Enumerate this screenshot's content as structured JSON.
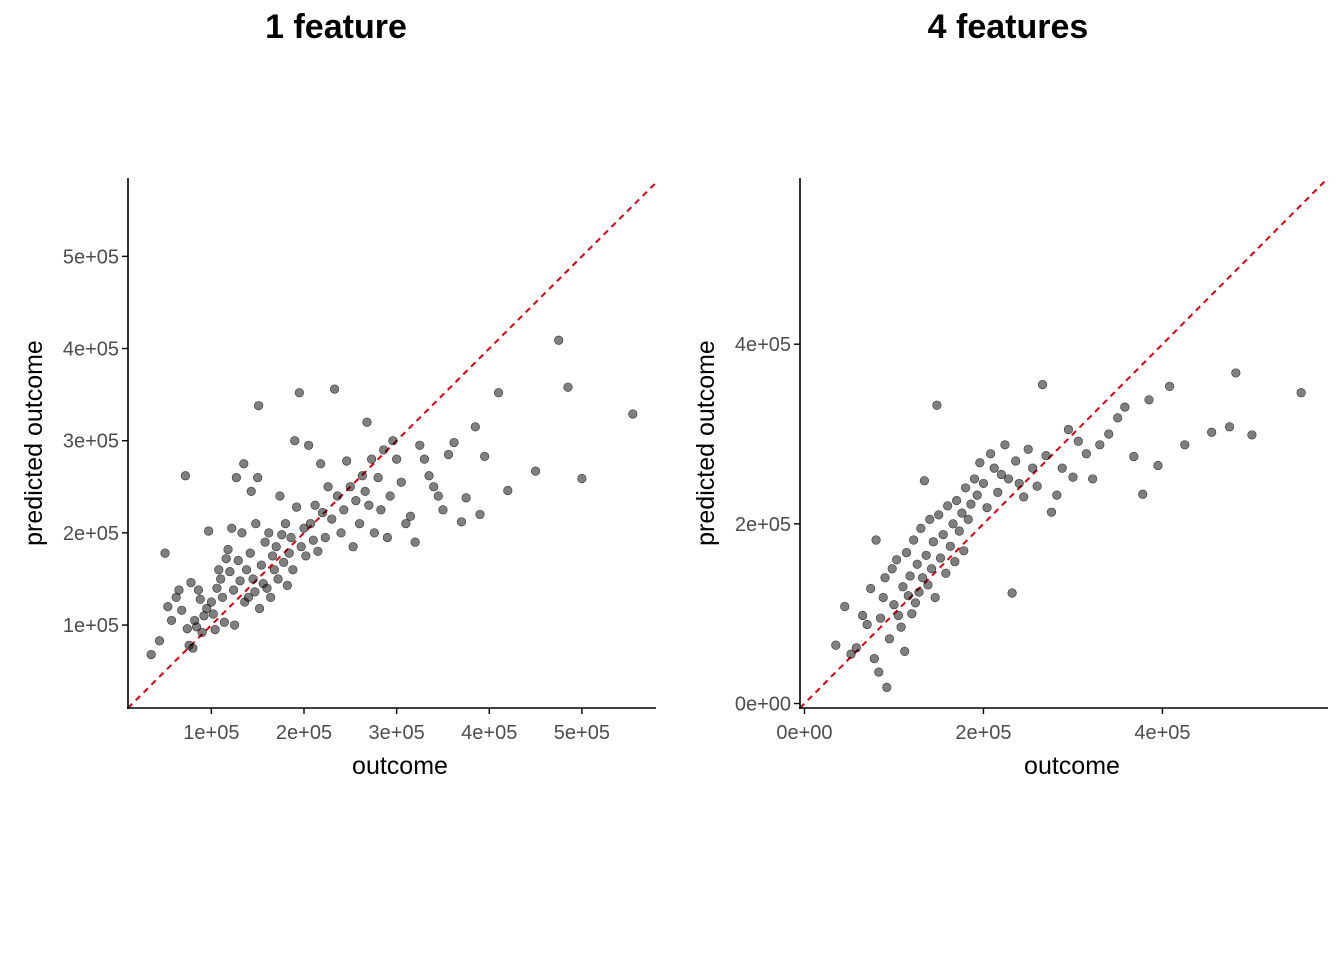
{
  "colors": {
    "points": "#000000",
    "point_alpha": 0.5,
    "reference_line": "#e0000b",
    "axis": "#000000",
    "tick_label": "#4d4d4d"
  },
  "chart_data": [
    {
      "type": "scatter",
      "title": "1 feature",
      "xlabel": "outcome",
      "ylabel": "predicted outcome",
      "xlim": [
        10000,
        580000
      ],
      "ylim": [
        10000,
        585000
      ],
      "x_ticks": [
        100000,
        200000,
        300000,
        400000,
        500000
      ],
      "x_tick_labels": [
        "1e+05",
        "2e+05",
        "3e+05",
        "4e+05",
        "5e+05"
      ],
      "y_ticks": [
        100000,
        200000,
        300000,
        400000,
        500000
      ],
      "y_tick_labels": [
        "1e+05",
        "2e+05",
        "3e+05",
        "4e+05",
        "5e+05"
      ],
      "reference_line": "y = x (dashed)",
      "grid": false,
      "points": [
        [
          35000,
          68000
        ],
        [
          44000,
          83000
        ],
        [
          50000,
          178000
        ],
        [
          53000,
          120000
        ],
        [
          57000,
          105000
        ],
        [
          62000,
          130000
        ],
        [
          65000,
          138000
        ],
        [
          68000,
          116000
        ],
        [
          72000,
          262000
        ],
        [
          74000,
          96000
        ],
        [
          76000,
          78000
        ],
        [
          78000,
          146000
        ],
        [
          80000,
          75000
        ],
        [
          82000,
          105000
        ],
        [
          84000,
          98000
        ],
        [
          86000,
          138000
        ],
        [
          88000,
          128000
        ],
        [
          90000,
          92000
        ],
        [
          92000,
          110000
        ],
        [
          95000,
          118000
        ],
        [
          97000,
          202000
        ],
        [
          100000,
          125000
        ],
        [
          102000,
          112000
        ],
        [
          104000,
          95000
        ],
        [
          106000,
          140000
        ],
        [
          108000,
          160000
        ],
        [
          110000,
          150000
        ],
        [
          112000,
          130000
        ],
        [
          114000,
          103000
        ],
        [
          116000,
          172000
        ],
        [
          118000,
          182000
        ],
        [
          120000,
          158000
        ],
        [
          122000,
          205000
        ],
        [
          124000,
          138000
        ],
        [
          125000,
          100000
        ],
        [
          127000,
          260000
        ],
        [
          129000,
          170000
        ],
        [
          131000,
          148000
        ],
        [
          133000,
          200000
        ],
        [
          135000,
          275000
        ],
        [
          136000,
          125000
        ],
        [
          138000,
          160000
        ],
        [
          140000,
          130000
        ],
        [
          142000,
          178000
        ],
        [
          143000,
          245000
        ],
        [
          145000,
          150000
        ],
        [
          147000,
          136000
        ],
        [
          148000,
          210000
        ],
        [
          150000,
          260000
        ],
        [
          151000,
          338000
        ],
        [
          152000,
          118000
        ],
        [
          154000,
          165000
        ],
        [
          156000,
          145000
        ],
        [
          158000,
          190000
        ],
        [
          160000,
          140000
        ],
        [
          162000,
          200000
        ],
        [
          164000,
          130000
        ],
        [
          166000,
          175000
        ],
        [
          168000,
          160000
        ],
        [
          170000,
          185000
        ],
        [
          172000,
          150000
        ],
        [
          174000,
          240000
        ],
        [
          176000,
          198000
        ],
        [
          178000,
          168000
        ],
        [
          180000,
          210000
        ],
        [
          182000,
          143000
        ],
        [
          184000,
          178000
        ],
        [
          186000,
          195000
        ],
        [
          188000,
          160000
        ],
        [
          190000,
          300000
        ],
        [
          192000,
          228000
        ],
        [
          195000,
          352000
        ],
        [
          197000,
          185000
        ],
        [
          200000,
          205000
        ],
        [
          202000,
          175000
        ],
        [
          205000,
          295000
        ],
        [
          207000,
          210000
        ],
        [
          210000,
          192000
        ],
        [
          212000,
          230000
        ],
        [
          215000,
          180000
        ],
        [
          218000,
          275000
        ],
        [
          220000,
          222000
        ],
        [
          223000,
          195000
        ],
        [
          226000,
          250000
        ],
        [
          230000,
          215000
        ],
        [
          233000,
          356000
        ],
        [
          236000,
          240000
        ],
        [
          240000,
          200000
        ],
        [
          243000,
          225000
        ],
        [
          246000,
          278000
        ],
        [
          250000,
          250000
        ],
        [
          253000,
          185000
        ],
        [
          256000,
          235000
        ],
        [
          260000,
          210000
        ],
        [
          263000,
          262000
        ],
        [
          266000,
          245000
        ],
        [
          268000,
          320000
        ],
        [
          270000,
          230000
        ],
        [
          273000,
          280000
        ],
        [
          276000,
          200000
        ],
        [
          280000,
          260000
        ],
        [
          283000,
          225000
        ],
        [
          286000,
          290000
        ],
        [
          290000,
          195000
        ],
        [
          293000,
          240000
        ],
        [
          296000,
          300000
        ],
        [
          300000,
          280000
        ],
        [
          305000,
          255000
        ],
        [
          310000,
          210000
        ],
        [
          315000,
          218000
        ],
        [
          320000,
          190000
        ],
        [
          325000,
          295000
        ],
        [
          330000,
          280000
        ],
        [
          335000,
          262000
        ],
        [
          340000,
          250000
        ],
        [
          345000,
          240000
        ],
        [
          350000,
          225000
        ],
        [
          356000,
          285000
        ],
        [
          362000,
          298000
        ],
        [
          370000,
          212000
        ],
        [
          375000,
          238000
        ],
        [
          385000,
          315000
        ],
        [
          390000,
          220000
        ],
        [
          395000,
          283000
        ],
        [
          410000,
          352000
        ],
        [
          420000,
          246000
        ],
        [
          450000,
          267000
        ],
        [
          475000,
          409000
        ],
        [
          485000,
          358000
        ],
        [
          500000,
          259000
        ],
        [
          555000,
          329000
        ]
      ]
    },
    {
      "type": "scatter",
      "title": "4 features",
      "xlabel": "outcome",
      "ylabel": "predicted outcome",
      "xlim": [
        -5000,
        585000
      ],
      "ylim": [
        -5000,
        585000
      ],
      "x_ticks": [
        0,
        200000,
        400000
      ],
      "x_tick_labels": [
        "0e+00",
        "2e+05",
        "4e+05"
      ],
      "y_ticks": [
        0,
        200000,
        400000
      ],
      "y_tick_labels": [
        "0e+00",
        "2e+05",
        "4e+05"
      ],
      "reference_line": "y = x (dashed)",
      "grid": false,
      "points": [
        [
          35000,
          65000
        ],
        [
          45000,
          108000
        ],
        [
          52000,
          55000
        ],
        [
          58000,
          62000
        ],
        [
          65000,
          98000
        ],
        [
          70000,
          88000
        ],
        [
          74000,
          128000
        ],
        [
          78000,
          50000
        ],
        [
          80000,
          182000
        ],
        [
          83000,
          35000
        ],
        [
          85000,
          95000
        ],
        [
          88000,
          118000
        ],
        [
          90000,
          140000
        ],
        [
          92000,
          18000
        ],
        [
          95000,
          72000
        ],
        [
          98000,
          150000
        ],
        [
          100000,
          110000
        ],
        [
          103000,
          160000
        ],
        [
          105000,
          98000
        ],
        [
          108000,
          85000
        ],
        [
          110000,
          130000
        ],
        [
          112000,
          58000
        ],
        [
          114000,
          168000
        ],
        [
          116000,
          120000
        ],
        [
          118000,
          142000
        ],
        [
          120000,
          100000
        ],
        [
          122000,
          182000
        ],
        [
          124000,
          112000
        ],
        [
          126000,
          155000
        ],
        [
          128000,
          124000
        ],
        [
          130000,
          195000
        ],
        [
          132000,
          140000
        ],
        [
          134000,
          248000
        ],
        [
          136000,
          165000
        ],
        [
          138000,
          132000
        ],
        [
          140000,
          205000
        ],
        [
          142000,
          150000
        ],
        [
          144000,
          180000
        ],
        [
          146000,
          118000
        ],
        [
          148000,
          332000
        ],
        [
          150000,
          210000
        ],
        [
          152000,
          162000
        ],
        [
          155000,
          188000
        ],
        [
          158000,
          145000
        ],
        [
          160000,
          220000
        ],
        [
          163000,
          175000
        ],
        [
          166000,
          200000
        ],
        [
          168000,
          158000
        ],
        [
          170000,
          226000
        ],
        [
          173000,
          192000
        ],
        [
          176000,
          212000
        ],
        [
          178000,
          170000
        ],
        [
          180000,
          240000
        ],
        [
          183000,
          205000
        ],
        [
          186000,
          222000
        ],
        [
          190000,
          250000
        ],
        [
          193000,
          232000
        ],
        [
          196000,
          268000
        ],
        [
          200000,
          245000
        ],
        [
          204000,
          218000
        ],
        [
          208000,
          278000
        ],
        [
          212000,
          262000
        ],
        [
          216000,
          235000
        ],
        [
          220000,
          255000
        ],
        [
          224000,
          288000
        ],
        [
          228000,
          250000
        ],
        [
          232000,
          123000
        ],
        [
          236000,
          270000
        ],
        [
          240000,
          245000
        ],
        [
          245000,
          230000
        ],
        [
          250000,
          283000
        ],
        [
          255000,
          262000
        ],
        [
          260000,
          242000
        ],
        [
          266000,
          355000
        ],
        [
          270000,
          276000
        ],
        [
          276000,
          213000
        ],
        [
          282000,
          232000
        ],
        [
          288000,
          262000
        ],
        [
          295000,
          305000
        ],
        [
          300000,
          252000
        ],
        [
          306000,
          292000
        ],
        [
          315000,
          278000
        ],
        [
          322000,
          250000
        ],
        [
          330000,
          288000
        ],
        [
          340000,
          300000
        ],
        [
          350000,
          318000
        ],
        [
          358000,
          330000
        ],
        [
          368000,
          275000
        ],
        [
          378000,
          233000
        ],
        [
          385000,
          338000
        ],
        [
          395000,
          265000
        ],
        [
          408000,
          353000
        ],
        [
          425000,
          288000
        ],
        [
          455000,
          302000
        ],
        [
          475000,
          308000
        ],
        [
          482000,
          368000
        ],
        [
          500000,
          299000
        ],
        [
          555000,
          346000
        ]
      ]
    }
  ]
}
